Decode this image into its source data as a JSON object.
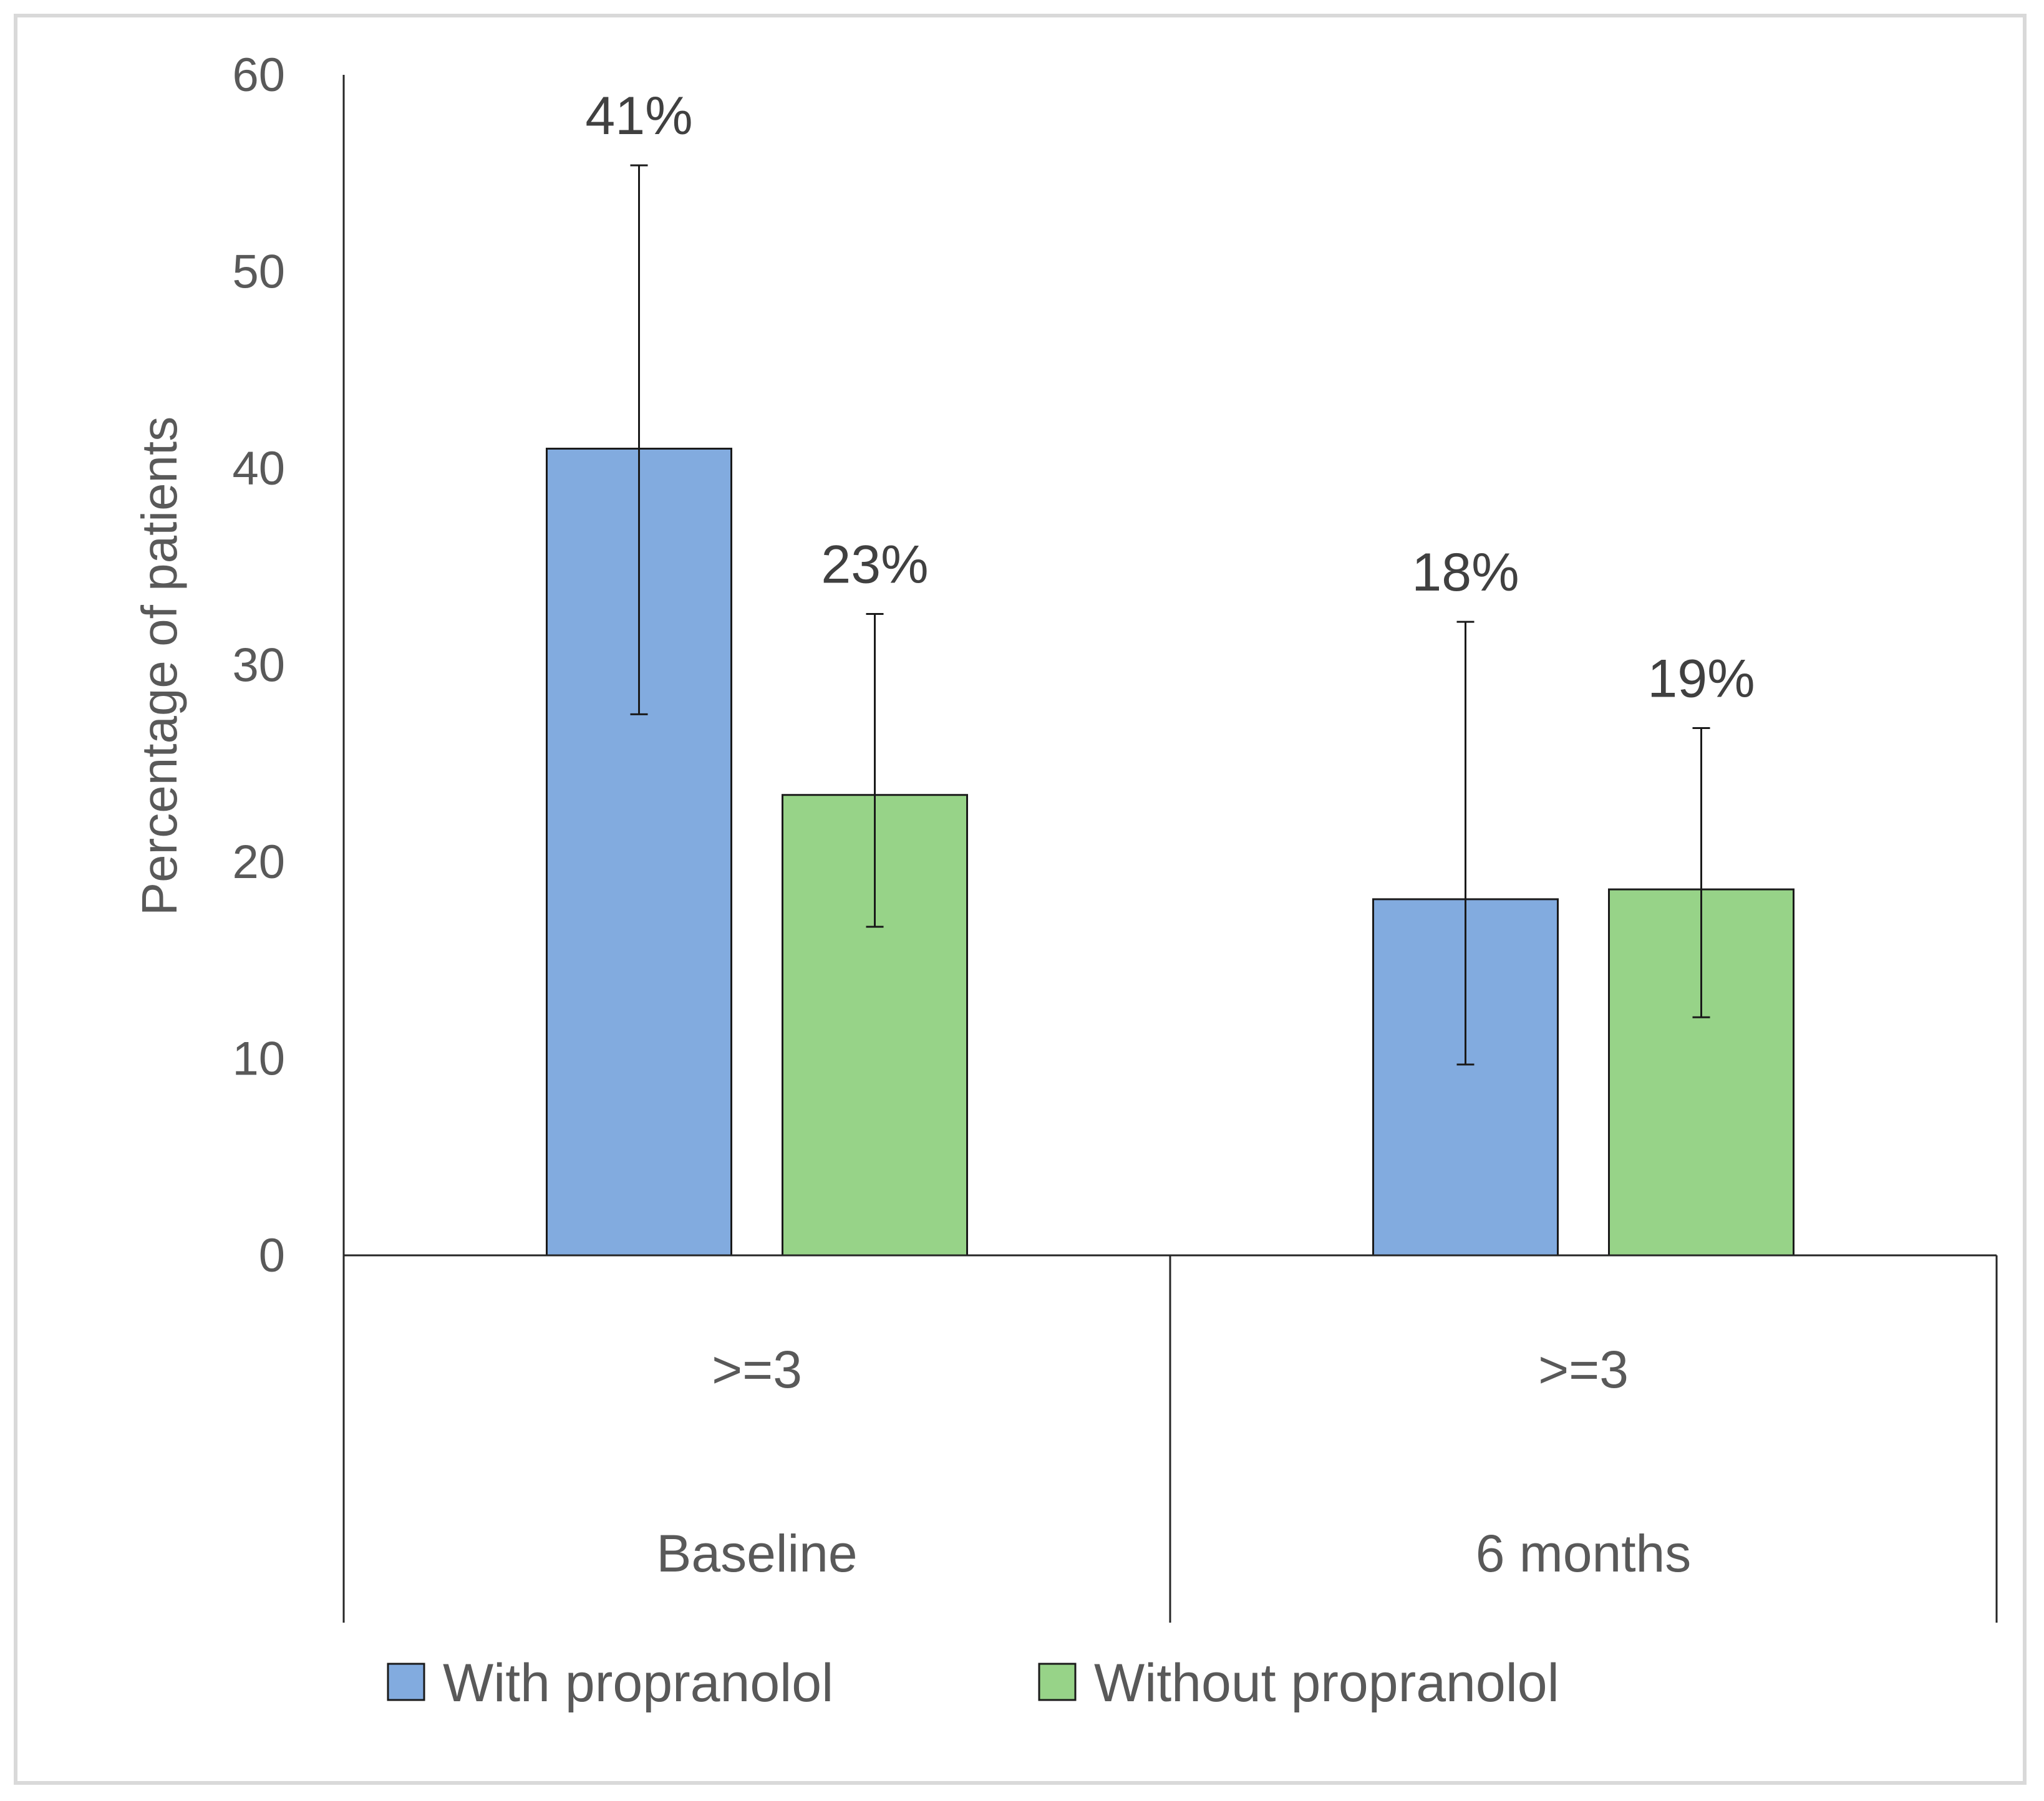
{
  "chart_data": {
    "type": "bar",
    "title": "",
    "xlabel": "",
    "ylabel": "Percentage of patients",
    "ylim": [
      0,
      60
    ],
    "yticks": [
      0,
      10,
      20,
      30,
      40,
      50,
      60
    ],
    "grid": false,
    "legend_position": "bottom",
    "categories": [
      {
        "group": "Baseline",
        "sublabel": ">=3"
      },
      {
        "group": "6 months",
        "sublabel": ">=3"
      }
    ],
    "series": [
      {
        "name": "With propranolol",
        "color": "#82abdf",
        "values": [
          41,
          18.1
        ],
        "error_low": [
          27.5,
          9.7
        ],
        "error_high": [
          55.4,
          32.2
        ],
        "data_labels": [
          "41%",
          "18%"
        ]
      },
      {
        "name": "Without propranolol",
        "color": "#97d388",
        "values": [
          23.4,
          18.6
        ],
        "error_low": [
          16.7,
          12.1
        ],
        "error_high": [
          32.6,
          26.8
        ],
        "data_labels": [
          "23%",
          "19%"
        ]
      }
    ]
  }
}
